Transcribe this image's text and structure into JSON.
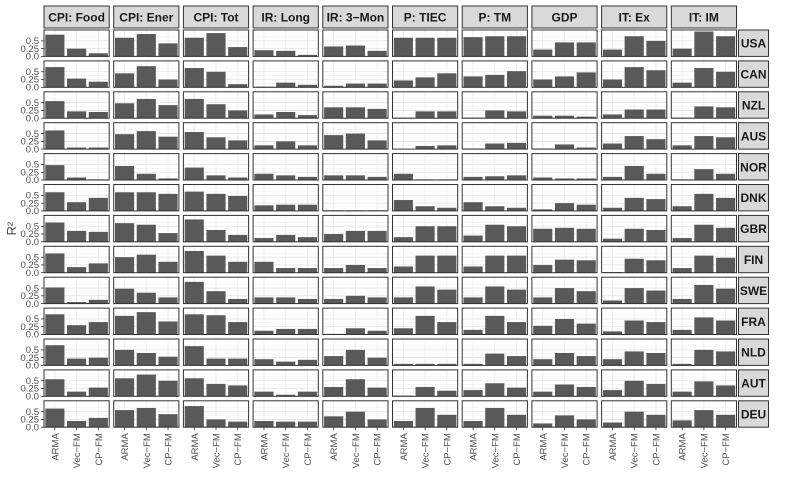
{
  "chart_data": {
    "type": "bar",
    "ylabel": "R²",
    "xlabel": "",
    "ylim": [
      0,
      0.85
    ],
    "yticks": [
      0.0,
      0.25,
      0.5
    ],
    "ytick_labels": [
      "0.0",
      "0.25",
      "0.5"
    ],
    "methods": [
      "ARMA",
      "Vec−FM",
      "CP−FM"
    ],
    "columns": [
      "CPI: Food",
      "CPI: Ener",
      "CPI: Tot",
      "IR: Long",
      "IR: 3−Mon",
      "P: TIEC",
      "P: TM",
      "GDP",
      "IT: Ex",
      "IT: IM"
    ],
    "rows": [
      "USA",
      "CAN",
      "NZL",
      "AUS",
      "NOR",
      "DNK",
      "GBR",
      "FIN",
      "SWE",
      "FRA",
      "NLD",
      "AUT",
      "DEU"
    ],
    "grid": true,
    "bar_color": "#595959",
    "values": {
      "USA": [
        [
          0.7,
          0.25,
          0.1
        ],
        [
          0.6,
          0.72,
          0.42
        ],
        [
          0.6,
          0.75,
          0.3
        ],
        [
          0.2,
          0.18,
          0.05
        ],
        [
          0.32,
          0.35,
          0.18
        ],
        [
          0.6,
          0.6,
          0.6
        ],
        [
          0.62,
          0.65,
          0.65
        ],
        [
          0.22,
          0.45,
          0.45
        ],
        [
          0.22,
          0.65,
          0.5
        ],
        [
          0.25,
          0.8,
          0.65
        ]
      ],
      "CAN": [
        [
          0.65,
          0.28,
          0.18
        ],
        [
          0.45,
          0.68,
          0.25
        ],
        [
          0.62,
          0.5,
          0.1
        ],
        [
          0.02,
          0.15,
          0.08
        ],
        [
          0.05,
          0.12,
          0.12
        ],
        [
          0.22,
          0.32,
          0.45
        ],
        [
          0.35,
          0.4,
          0.52
        ],
        [
          0.25,
          0.35,
          0.48
        ],
        [
          0.25,
          0.65,
          0.55
        ],
        [
          0.15,
          0.62,
          0.5
        ]
      ],
      "NZL": [
        [
          0.55,
          0.22,
          0.2
        ],
        [
          0.48,
          0.62,
          0.42
        ],
        [
          0.62,
          0.45,
          0.25
        ],
        [
          0.12,
          0.2,
          0.1
        ],
        [
          0.35,
          0.35,
          0.3
        ],
        [
          0.02,
          0.22,
          0.22
        ],
        [
          0.02,
          0.25,
          0.22
        ],
        [
          0.08,
          0.08,
          0.05
        ],
        [
          0.12,
          0.28,
          0.28
        ],
        [
          0.02,
          0.38,
          0.35
        ]
      ],
      "AUS": [
        [
          0.6,
          0.05,
          0.05
        ],
        [
          0.48,
          0.58,
          0.4
        ],
        [
          0.55,
          0.38,
          0.28
        ],
        [
          0.12,
          0.25,
          0.12
        ],
        [
          0.45,
          0.5,
          0.28
        ],
        [
          0.0,
          0.1,
          0.12
        ],
        [
          0.02,
          0.18,
          0.2
        ],
        [
          0.02,
          0.15,
          0.05
        ],
        [
          0.18,
          0.42,
          0.32
        ],
        [
          0.12,
          0.42,
          0.38
        ]
      ],
      "NOR": [
        [
          0.48,
          0.08,
          0.02
        ],
        [
          0.45,
          0.2,
          0.05
        ],
        [
          0.4,
          0.15,
          0.08
        ],
        [
          0.2,
          0.15,
          0.1
        ],
        [
          0.15,
          0.15,
          0.1
        ],
        [
          0.2,
          0.02,
          0.02
        ],
        [
          0.1,
          0.12,
          0.15
        ],
        [
          0.08,
          0.05,
          0.05
        ],
        [
          0.1,
          0.45,
          0.2
        ],
        [
          0.02,
          0.35,
          0.2
        ]
      ],
      "DNK": [
        [
          0.6,
          0.28,
          0.42
        ],
        [
          0.6,
          0.6,
          0.55
        ],
        [
          0.62,
          0.55,
          0.48
        ],
        [
          0.18,
          0.2,
          0.2
        ],
        [
          0.02,
          0.02,
          0.02
        ],
        [
          0.35,
          0.15,
          0.1
        ],
        [
          0.28,
          0.15,
          0.1
        ],
        [
          0.05,
          0.25,
          0.2
        ],
        [
          0.1,
          0.42,
          0.38
        ],
        [
          0.15,
          0.55,
          0.42
        ]
      ],
      "GBR": [
        [
          0.62,
          0.35,
          0.32
        ],
        [
          0.6,
          0.55,
          0.28
        ],
        [
          0.72,
          0.38,
          0.22
        ],
        [
          0.12,
          0.22,
          0.15
        ],
        [
          0.25,
          0.35,
          0.35
        ],
        [
          0.15,
          0.5,
          0.5
        ],
        [
          0.2,
          0.55,
          0.5
        ],
        [
          0.42,
          0.45,
          0.42
        ],
        [
          0.1,
          0.42,
          0.38
        ],
        [
          0.12,
          0.55,
          0.45
        ]
      ],
      "FIN": [
        [
          0.62,
          0.18,
          0.3
        ],
        [
          0.5,
          0.58,
          0.35
        ],
        [
          0.7,
          0.55,
          0.35
        ],
        [
          0.35,
          0.15,
          0.15
        ],
        [
          0.15,
          0.25,
          0.15
        ],
        [
          0.2,
          0.55,
          0.55
        ],
        [
          0.2,
          0.55,
          0.55
        ],
        [
          0.25,
          0.42,
          0.4
        ],
        [
          0.02,
          0.45,
          0.4
        ],
        [
          0.15,
          0.55,
          0.48
        ]
      ],
      "SWE": [
        [
          0.52,
          0.05,
          0.12
        ],
        [
          0.48,
          0.35,
          0.2
        ],
        [
          0.7,
          0.4,
          0.15
        ],
        [
          0.2,
          0.2,
          0.15
        ],
        [
          0.15,
          0.25,
          0.2
        ],
        [
          0.2,
          0.55,
          0.45
        ],
        [
          0.2,
          0.55,
          0.45
        ],
        [
          0.2,
          0.5,
          0.4
        ],
        [
          0.1,
          0.5,
          0.42
        ],
        [
          0.15,
          0.6,
          0.48
        ]
      ],
      "FRA": [
        [
          0.65,
          0.3,
          0.4
        ],
        [
          0.6,
          0.72,
          0.42
        ],
        [
          0.65,
          0.62,
          0.4
        ],
        [
          0.12,
          0.18,
          0.18
        ],
        [
          0.02,
          0.2,
          0.12
        ],
        [
          0.2,
          0.6,
          0.4
        ],
        [
          0.15,
          0.6,
          0.4
        ],
        [
          0.28,
          0.5,
          0.35
        ],
        [
          0.1,
          0.45,
          0.4
        ],
        [
          0.15,
          0.55,
          0.45
        ]
      ],
      "NLD": [
        [
          0.65,
          0.22,
          0.25
        ],
        [
          0.5,
          0.4,
          0.28
        ],
        [
          0.62,
          0.22,
          0.22
        ],
        [
          0.2,
          0.12,
          0.18
        ],
        [
          0.3,
          0.5,
          0.25
        ],
        [
          0.05,
          0.05,
          0.05
        ],
        [
          0.05,
          0.38,
          0.3
        ],
        [
          0.2,
          0.4,
          0.3
        ],
        [
          0.2,
          0.45,
          0.4
        ],
        [
          0.05,
          0.5,
          0.45
        ]
      ],
      "AUT": [
        [
          0.55,
          0.15,
          0.28
        ],
        [
          0.58,
          0.7,
          0.5
        ],
        [
          0.58,
          0.4,
          0.35
        ],
        [
          0.15,
          0.05,
          0.15
        ],
        [
          0.3,
          0.55,
          0.28
        ],
        [
          0.02,
          0.3,
          0.18
        ],
        [
          0.2,
          0.42,
          0.28
        ],
        [
          0.15,
          0.38,
          0.3
        ],
        [
          0.2,
          0.5,
          0.4
        ],
        [
          0.15,
          0.48,
          0.35
        ]
      ],
      "DEU": [
        [
          0.6,
          0.2,
          0.3
        ],
        [
          0.55,
          0.62,
          0.42
        ],
        [
          0.68,
          0.25,
          0.18
        ],
        [
          0.2,
          0.18,
          0.18
        ],
        [
          0.35,
          0.5,
          0.25
        ],
        [
          0.2,
          0.62,
          0.4
        ],
        [
          0.2,
          0.62,
          0.4
        ],
        [
          0.12,
          0.38,
          0.25
        ],
        [
          0.15,
          0.5,
          0.4
        ],
        [
          0.22,
          0.55,
          0.4
        ]
      ]
    }
  }
}
